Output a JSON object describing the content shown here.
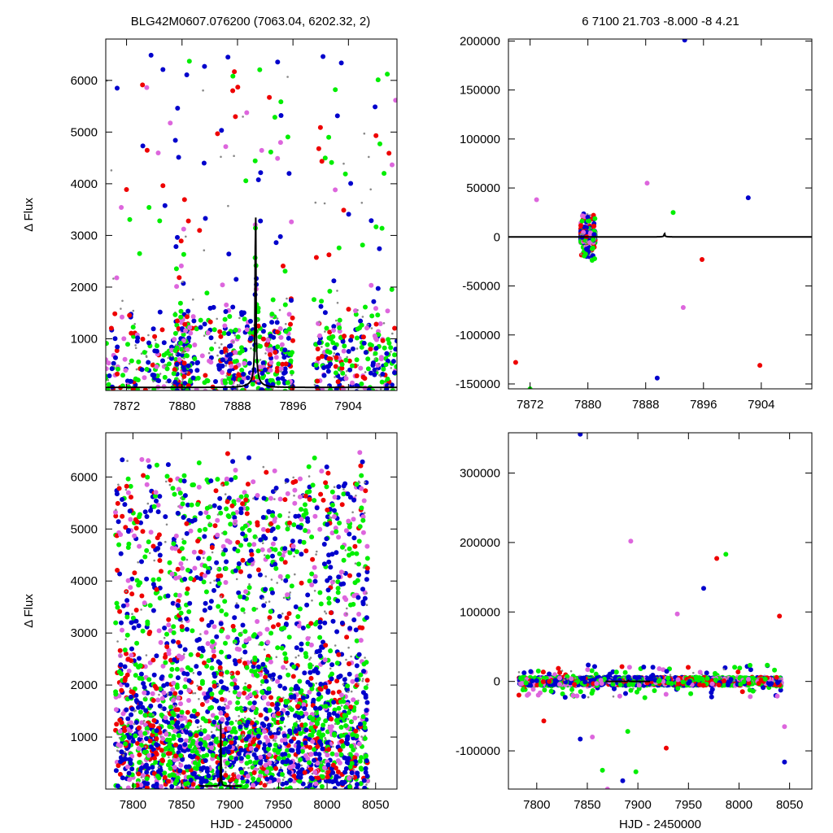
{
  "header": {
    "left_title": "BLG42M0607.076200 (7063.04, 6202.32,    2)",
    "right_title": "6   7100    21.703    -8.000    -8   4.21"
  },
  "colors": {
    "ogle": "#0000cc",
    "moa_green": "#00ee00",
    "red": "#ee0000",
    "violet": "#dd66dd",
    "grey": "#888888",
    "model": "#000000"
  },
  "chart_data": [
    {
      "id": "top-left",
      "type": "scatter",
      "title": "BLG42M0607.076200 (7063.04, 6202.32,    2)",
      "xlabel": "",
      "ylabel": "Δ Flux",
      "xlim": [
        7869,
        7911
      ],
      "ylim": [
        0,
        6800
      ],
      "xticks": [
        7872,
        7880,
        7888,
        7896,
        7904
      ],
      "yticks": [
        1000,
        2000,
        3000,
        4000,
        5000,
        6000
      ],
      "model": {
        "t0": 7890.6,
        "u0": 0.012,
        "tE": 2.0,
        "amp": 5300,
        "base": 60
      },
      "seed": 11,
      "n_points": 1400,
      "density": [
        [
          7869,
          7886,
          0.35
        ],
        [
          7886,
          7896,
          0.45
        ],
        [
          7899,
          7911,
          0.2
        ]
      ]
    },
    {
      "id": "top-right",
      "type": "scatter",
      "title": "6   7100    21.703    -8.000    -8   4.21",
      "xlabel": "",
      "ylabel": "",
      "xlim": [
        7869,
        7911
      ],
      "ylim": [
        -155000,
        202000
      ],
      "xticks": [
        7872,
        7880,
        7888,
        7896,
        7904
      ],
      "yticks": [
        -150000,
        -100000,
        -50000,
        0,
        50000,
        100000,
        150000,
        200000
      ],
      "model": {
        "t0": 7890.6,
        "u0": 0.012,
        "tE": 2.0,
        "amp": 5300,
        "base": 60
      },
      "seed": 23,
      "n_points": 900,
      "outliers": [
        [
          7893.4,
          201000
        ],
        [
          7888.2,
          55000
        ],
        [
          7870.0,
          -128000
        ],
        [
          7872.0,
          -155000
        ],
        [
          7889.6,
          -144000
        ],
        [
          7893.2,
          -72000
        ],
        [
          7903.8,
          -131000
        ],
        [
          7891.8,
          25000
        ],
        [
          7902.2,
          40000
        ],
        [
          7872.9,
          38000
        ],
        [
          7895.8,
          -23000
        ]
      ]
    },
    {
      "id": "bottom-left",
      "type": "scatter",
      "title": "",
      "xlabel": "HJD - 2450000",
      "ylabel": "Δ Flux",
      "xlim": [
        7772,
        8072
      ],
      "ylim": [
        0,
        6850
      ],
      "xticks": [
        7800,
        7850,
        7900,
        7950,
        8000,
        8050
      ],
      "yticks": [
        1000,
        2000,
        3000,
        4000,
        5000,
        6000
      ],
      "model": {
        "t0": 7890.6,
        "u0": 0.012,
        "tE": 2.0,
        "amp": 5300,
        "base": 60
      },
      "seed": 37,
      "n_points": 3600
    },
    {
      "id": "bottom-right",
      "type": "scatter",
      "title": "",
      "xlabel": "HJD - 2450000",
      "ylabel": "",
      "xlim": [
        7772,
        8072
      ],
      "ylim": [
        -155000,
        358000
      ],
      "xticks": [
        7800,
        7850,
        7900,
        7950,
        8000,
        8050
      ],
      "yticks": [
        -100000,
        0,
        100000,
        200000,
        300000
      ],
      "model": {
        "t0": 7890.6,
        "u0": 0.012,
        "tE": 2.0,
        "amp": 5300,
        "base": 60
      },
      "seed": 53,
      "n_points": 1800,
      "outliers": [
        [
          7843,
          356000
        ],
        [
          7893,
          202000
        ],
        [
          7978,
          177000
        ],
        [
          7987,
          183000
        ],
        [
          7965,
          134000
        ],
        [
          7939,
          97000
        ],
        [
          8040,
          94000
        ],
        [
          7865,
          -128000
        ],
        [
          7885,
          -143000
        ],
        [
          7870,
          -155000
        ],
        [
          7928,
          -96000
        ],
        [
          7898,
          -130000
        ],
        [
          8045,
          -116000
        ],
        [
          8045,
          -65000
        ],
        [
          7807,
          -57000
        ],
        [
          7890,
          -72000
        ],
        [
          7843,
          -83000
        ],
        [
          7855,
          -80000
        ]
      ]
    }
  ]
}
